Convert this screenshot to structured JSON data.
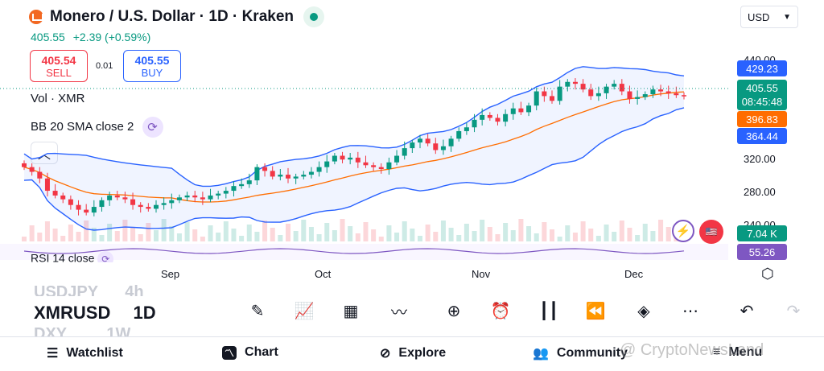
{
  "header": {
    "title": "Monero / U.S. Dollar · 1D · Kraken",
    "currency": "USD",
    "price": "405.55",
    "change": "+2.39 (+0.59%)"
  },
  "trade": {
    "sell_price": "405.54",
    "sell_label": "SELL",
    "spread": "0.01",
    "buy_price": "405.55",
    "buy_label": "BUY"
  },
  "indicators": {
    "volume": "Vol · XMR",
    "bollinger": "BB 20 SMA close 2",
    "rsi": "RSI 14 close"
  },
  "price_axis": {
    "ticks": [
      "440.00",
      "320.00",
      "280.00",
      "240.00"
    ],
    "tags": {
      "bb_upper": "429.23",
      "current": "405.55",
      "countdown": "08:45:48",
      "bb_mid": "396.83",
      "bb_lower": "364.44",
      "volume": "7.04 K",
      "rsi": "55.26"
    }
  },
  "time_axis": [
    "Sep",
    "Oct",
    "Nov",
    "Dec"
  ],
  "symbols": {
    "above": "USDJPY",
    "above_interval": "4h",
    "current": "XMRUSD",
    "current_interval": "1D",
    "below": "DXY",
    "below_interval": "1W"
  },
  "bottom_nav": [
    "Watchlist",
    "Chart",
    "Explore",
    "Community",
    "Menu"
  ],
  "watermark": "@ CryptoNewsLand",
  "colors": {
    "up": "#089981",
    "down": "#f23645",
    "bb_band": "#2962ff",
    "bb_mid": "#ff6d00",
    "rsi": "#7e57c2"
  },
  "chart_data": {
    "type": "candlestick",
    "x": [
      "Sep",
      "Oct",
      "Nov",
      "Dec"
    ],
    "ylim": [
      240,
      440
    ],
    "last_close": 405.55,
    "bollinger": {
      "upper": 429.23,
      "middle": 396.83,
      "lower": 364.44
    },
    "volume_last": "7.04 K",
    "rsi_last": 55.26,
    "closes": [
      330,
      325,
      318,
      305,
      300,
      296,
      290,
      285,
      282,
      288,
      295,
      300,
      298,
      296,
      290,
      288,
      286,
      290,
      292,
      295,
      298,
      300,
      298,
      296,
      300,
      302,
      305,
      310,
      312,
      316,
      330,
      326,
      320,
      322,
      318,
      320,
      322,
      325,
      330,
      336,
      342,
      338,
      340,
      335,
      332,
      330,
      328,
      335,
      342,
      350,
      356,
      360,
      355,
      348,
      352,
      360,
      368,
      372,
      380,
      385,
      382,
      378,
      386,
      392,
      388,
      395,
      410,
      405,
      400,
      415,
      420,
      418,
      412,
      405,
      408,
      415,
      418,
      410,
      402,
      404,
      407,
      412,
      410,
      408,
      406,
      405.55
    ]
  }
}
